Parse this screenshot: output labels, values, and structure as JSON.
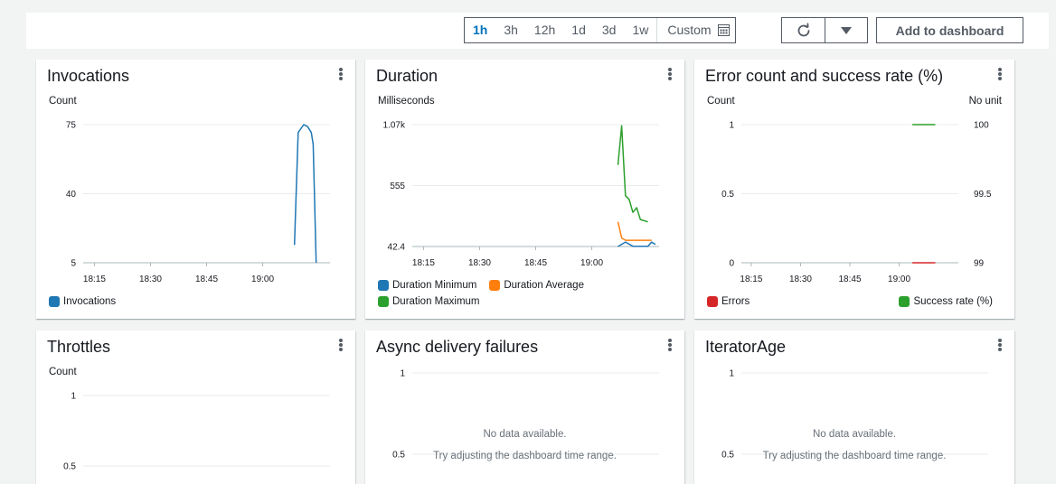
{
  "toolbar": {
    "ranges": [
      "1h",
      "3h",
      "12h",
      "1d",
      "3d",
      "1w"
    ],
    "active_range": "1h",
    "custom_label": "Custom",
    "add_label": "Add to dashboard"
  },
  "colors": {
    "blue": "#1f77b4",
    "orange": "#ff7f0e",
    "green": "#2ca02c",
    "red": "#d62728",
    "grid": "#e9ebed",
    "axis": "#aab7b8"
  },
  "panels": {
    "invocations": {
      "title": "Invocations",
      "unit": "Count"
    },
    "duration": {
      "title": "Duration",
      "unit": "Milliseconds"
    },
    "errors": {
      "title": "Error count and success rate (%)",
      "unit": "Count",
      "unit_right": "No unit"
    },
    "throttles": {
      "title": "Throttles",
      "unit": "Count"
    },
    "async": {
      "title": "Async delivery failures",
      "nodata": "No data available.",
      "nodata_hint": "Try adjusting the dashboard time range."
    },
    "iterator": {
      "title": "IteratorAge",
      "nodata": "No data available.",
      "nodata_hint": "Try adjusting the dashboard time range."
    }
  },
  "chart_data": [
    {
      "id": "invocations",
      "type": "line",
      "xticks": [
        "18:15",
        "18:30",
        "18:45",
        "19:00"
      ],
      "xtick_minutes": [
        0,
        15,
        30,
        45
      ],
      "xlim_minutes": [
        -3,
        63
      ],
      "yticks": [
        "75",
        "40",
        "5"
      ],
      "ylim": [
        5,
        75
      ],
      "series": [
        {
          "name": "Invocations",
          "color": "#1f77b4",
          "points": [
            [
              53.5,
              14
            ],
            [
              54.5,
              71
            ],
            [
              56,
              75
            ],
            [
              57,
              74
            ],
            [
              58,
              71
            ],
            [
              58.5,
              65
            ],
            [
              59.3,
              5
            ]
          ]
        }
      ]
    },
    {
      "id": "duration",
      "type": "line",
      "xticks": [
        "18:15",
        "18:30",
        "18:45",
        "19:00"
      ],
      "xtick_minutes": [
        0,
        15,
        30,
        45
      ],
      "xlim_minutes": [
        -3,
        63
      ],
      "yticks": [
        "1.07k",
        "555",
        "42.4"
      ],
      "ylim": [
        42.4,
        1070
      ],
      "series": [
        {
          "name": "Duration Minimum",
          "color": "#1f77b4",
          "points": [
            [
              52,
              42.4
            ],
            [
              54,
              80
            ],
            [
              56,
              45
            ],
            [
              58,
              45
            ],
            [
              60,
              45
            ],
            [
              61,
              80
            ],
            [
              62,
              60
            ]
          ]
        },
        {
          "name": "Duration Average",
          "color": "#ff7f0e",
          "points": [
            [
              52,
              250
            ],
            [
              53,
              115
            ],
            [
              54,
              95
            ],
            [
              56,
              95
            ],
            [
              58,
              95
            ],
            [
              60,
              95
            ],
            [
              61,
              95
            ]
          ]
        },
        {
          "name": "Duration Maximum",
          "color": "#2ca02c",
          "points": [
            [
              52,
              730
            ],
            [
              53,
              1060
            ],
            [
              54,
              470
            ],
            [
              55,
              440
            ],
            [
              56,
              330
            ],
            [
              57,
              370
            ],
            [
              58,
              270
            ],
            [
              60,
              250
            ]
          ]
        }
      ]
    },
    {
      "id": "errors",
      "type": "line",
      "xticks": [
        "18:15",
        "18:30",
        "18:45",
        "19:00"
      ],
      "xtick_minutes": [
        0,
        15,
        30,
        45
      ],
      "xlim_minutes": [
        -3,
        63
      ],
      "yticks": [
        "1",
        "0.5",
        "0"
      ],
      "ylim": [
        0,
        1
      ],
      "y2ticks": [
        "100",
        "99.5",
        "99"
      ],
      "y2lim": [
        99,
        100
      ],
      "series": [
        {
          "name": "Errors",
          "color": "#d62728",
          "axis": "left",
          "points": [
            [
              49,
              0
            ],
            [
              56,
              0
            ]
          ]
        },
        {
          "name": "Success rate (%)",
          "color": "#2ca02c",
          "axis": "right",
          "points": [
            [
              49,
              100
            ],
            [
              56,
              100
            ]
          ]
        }
      ]
    },
    {
      "id": "throttles",
      "type": "line",
      "yticks": [
        "1",
        "0.5"
      ],
      "ylim": [
        0,
        1
      ],
      "series": []
    },
    {
      "id": "async",
      "type": "line",
      "yticks": [
        "1",
        "0.5"
      ],
      "ylim": [
        0,
        1
      ],
      "series": []
    },
    {
      "id": "iterator",
      "type": "line",
      "yticks": [
        "1",
        "0.5"
      ],
      "ylim": [
        0,
        1
      ],
      "series": []
    }
  ]
}
